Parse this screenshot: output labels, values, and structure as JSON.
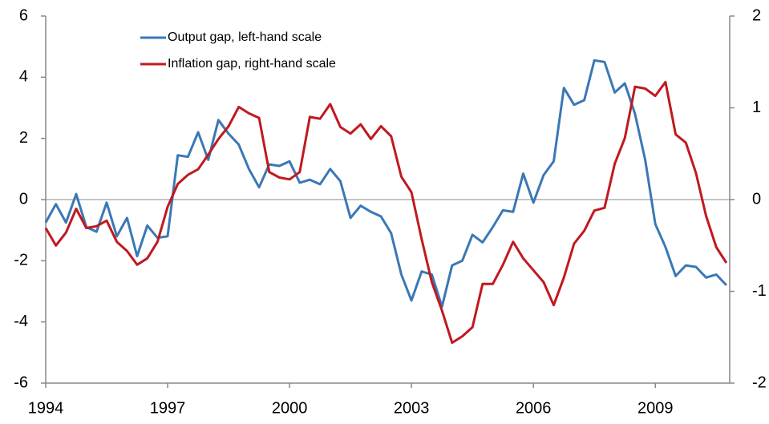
{
  "chart_data": {
    "type": "line",
    "x": [
      1994,
      1994.25,
      1994.5,
      1994.75,
      1995,
      1995.25,
      1995.5,
      1995.75,
      1996,
      1996.25,
      1996.5,
      1996.75,
      1997,
      1997.25,
      1997.5,
      1997.75,
      1998,
      1998.25,
      1998.5,
      1998.75,
      1999,
      1999.25,
      1999.5,
      1999.75,
      2000,
      2000.25,
      2000.5,
      2000.75,
      2001,
      2001.25,
      2001.5,
      2001.75,
      2002,
      2002.25,
      2002.5,
      2002.75,
      2003,
      2003.25,
      2003.5,
      2003.75,
      2004,
      2004.25,
      2004.5,
      2004.75,
      2005,
      2005.25,
      2005.5,
      2005.75,
      2006,
      2006.25,
      2006.5,
      2006.75,
      2007,
      2007.25,
      2007.5,
      2007.75,
      2008,
      2008.25,
      2008.5,
      2008.75,
      2009,
      2009.25,
      2009.5,
      2009.75,
      2010,
      2010.25,
      2010.5,
      2010.75
    ],
    "series": [
      {
        "name": "Output gap, left-hand scale",
        "color": "#3a78b5",
        "values": [
          -0.75,
          -0.15,
          -0.75,
          0.18,
          -0.9,
          -1.05,
          -0.1,
          -1.2,
          -0.6,
          -1.85,
          -0.85,
          -1.25,
          -1.2,
          1.45,
          1.4,
          2.2,
          1.3,
          2.6,
          2.15,
          1.8,
          1.0,
          0.4,
          1.15,
          1.1,
          1.25,
          0.55,
          0.65,
          0.5,
          1.0,
          0.6,
          -0.6,
          -0.2,
          -0.4,
          -0.55,
          -1.1,
          -2.45,
          -3.3,
          -2.35,
          -2.45,
          -3.5,
          -2.15,
          -2.0,
          -1.15,
          -1.4,
          -0.9,
          -0.35,
          -0.4,
          0.85,
          -0.1,
          0.8,
          1.25,
          3.65,
          3.1,
          3.25,
          4.55,
          4.5,
          3.5,
          3.8,
          2.8,
          1.3,
          -0.8,
          -1.55,
          -2.5,
          -2.15,
          -2.2,
          -2.55,
          -2.45,
          -2.8
        ]
      },
      {
        "name": "Inflation gap, right-hand scale",
        "color": "#c0191f",
        "axis": "y2",
        "values": [
          -0.31,
          -0.5,
          -0.36,
          -0.1,
          -0.31,
          -0.29,
          -0.23,
          -0.46,
          -0.56,
          -0.71,
          -0.64,
          -0.46,
          -0.08,
          0.17,
          0.27,
          0.33,
          0.49,
          0.66,
          0.8,
          1.01,
          0.94,
          0.89,
          0.3,
          0.24,
          0.22,
          0.3,
          0.9,
          0.88,
          1.04,
          0.79,
          0.72,
          0.82,
          0.66,
          0.8,
          0.69,
          0.25,
          0.08,
          -0.43,
          -0.9,
          -1.21,
          -1.56,
          -1.49,
          -1.39,
          -0.92,
          -0.92,
          -0.71,
          -0.46,
          -0.64,
          -0.77,
          -0.9,
          -1.15,
          -0.85,
          -0.48,
          -0.34,
          -0.12,
          -0.09,
          0.39,
          0.67,
          1.23,
          1.21,
          1.13,
          1.28,
          0.71,
          0.62,
          0.29,
          -0.18,
          -0.52,
          -0.69
        ]
      }
    ],
    "xlim": [
      1994,
      2010.83
    ],
    "xticks": [
      1994,
      1997,
      2000,
      2003,
      2006,
      2009
    ],
    "ylim": [
      -6,
      6
    ],
    "yticks": [
      -6,
      -4,
      -2,
      0,
      2,
      4,
      6
    ],
    "y2lim": [
      -2,
      2
    ],
    "y2ticks": [
      -2,
      -1,
      0,
      1,
      2
    ],
    "legend": "top-left",
    "zero_line": true
  }
}
